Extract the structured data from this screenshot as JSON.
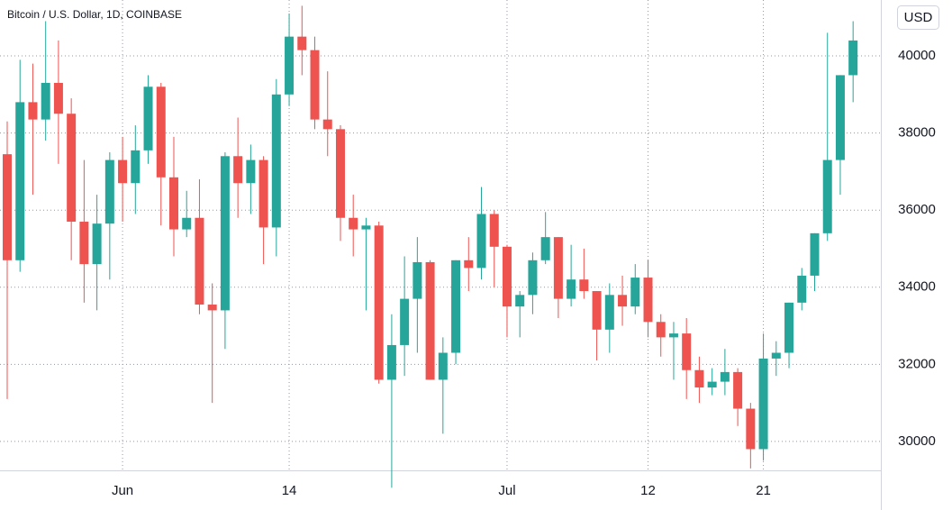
{
  "chart_data": {
    "type": "candlestick",
    "title": "Bitcoin / U.S. Dollar, 1D, COINBASE",
    "currency": "USD",
    "categories": [
      null,
      null,
      null,
      null,
      null,
      null,
      null,
      null,
      null,
      "Jun",
      null,
      null,
      null,
      null,
      null,
      null,
      null,
      null,
      null,
      null,
      null,
      null,
      "14",
      null,
      null,
      null,
      null,
      null,
      null,
      null,
      null,
      null,
      null,
      null,
      null,
      null,
      null,
      null,
      null,
      "Jul",
      null,
      null,
      null,
      null,
      null,
      null,
      null,
      null,
      null,
      null,
      "12",
      null,
      null,
      null,
      null,
      null,
      null,
      null,
      null,
      "21",
      null,
      null,
      null,
      null,
      null,
      null,
      null
    ],
    "open": [
      37450,
      34700,
      38800,
      38350,
      39300,
      38500,
      35700,
      34600,
      35650,
      37300,
      36700,
      37550,
      39200,
      36850,
      35500,
      35800,
      33550,
      33400,
      37400,
      36700,
      37300,
      35550,
      39000,
      40500,
      40150,
      38350,
      38100,
      35800,
      35500,
      35600,
      31600,
      32500,
      33700,
      34650,
      31600,
      32300,
      34700,
      34500,
      35900,
      35050,
      33500,
      33800,
      34700,
      35300,
      33700,
      34200,
      33900,
      32900,
      33800,
      33500,
      34250,
      33100,
      32700,
      32800,
      31850,
      31400,
      31550,
      31800,
      30850,
      29800,
      32150,
      32300,
      33600,
      34300,
      35400,
      37300,
      39500
    ],
    "high": [
      38300,
      39900,
      39800,
      40900,
      40400,
      38900,
      37300,
      36400,
      37500,
      37900,
      38200,
      39500,
      39300,
      37900,
      36500,
      36800,
      34100,
      37500,
      38400,
      37700,
      37400,
      39400,
      41100,
      41300,
      40500,
      39600,
      38200,
      36400,
      35800,
      35700,
      33300,
      34800,
      35300,
      34700,
      32700,
      34700,
      35300,
      36600,
      36000,
      35100,
      33900,
      34900,
      35950,
      35300,
      35100,
      35000,
      33900,
      34100,
      34300,
      34600,
      34700,
      33300,
      33100,
      33200,
      32200,
      31900,
      32400,
      31900,
      31000,
      32800,
      32600,
      33600,
      34500,
      35400,
      40600,
      39500,
      40900
    ],
    "low": [
      31100,
      34400,
      36400,
      37800,
      37200,
      34700,
      33600,
      33400,
      34200,
      35700,
      35900,
      37200,
      35600,
      34800,
      35300,
      33300,
      31000,
      32400,
      35800,
      35900,
      34600,
      34800,
      38700,
      39500,
      38100,
      37400,
      35200,
      34800,
      33400,
      31500,
      28800,
      31700,
      32300,
      31600,
      30200,
      32000,
      33900,
      34200,
      34000,
      32700,
      32700,
      33300,
      34600,
      33200,
      33500,
      33700,
      32100,
      32300,
      33000,
      33300,
      32700,
      32200,
      31600,
      31100,
      31000,
      31200,
      31200,
      30400,
      29300,
      29500,
      31700,
      31900,
      33400,
      33900,
      35200,
      36400,
      38800
    ],
    "close": [
      34700,
      38800,
      38350,
      39300,
      38500,
      35700,
      34600,
      35650,
      37300,
      36700,
      37550,
      39200,
      36850,
      35500,
      35800,
      33550,
      33400,
      37400,
      36700,
      37300,
      35550,
      39000,
      40500,
      40150,
      38350,
      38100,
      35800,
      35500,
      35600,
      31600,
      32500,
      33700,
      34650,
      31600,
      32300,
      34700,
      34500,
      35900,
      35050,
      33500,
      33800,
      34700,
      35300,
      33700,
      34200,
      33900,
      32900,
      33800,
      33500,
      34250,
      33100,
      32700,
      32800,
      31850,
      31400,
      31550,
      31800,
      30850,
      29800,
      32150,
      32300,
      33600,
      34300,
      35400,
      37300,
      39500,
      40400
    ],
    "up_color": "#26a69a",
    "down_color": "#ef5350",
    "ylim": [
      29250,
      41450
    ],
    "yticks": [
      30000,
      32000,
      34000,
      36000,
      38000,
      40000
    ],
    "grid": true
  }
}
